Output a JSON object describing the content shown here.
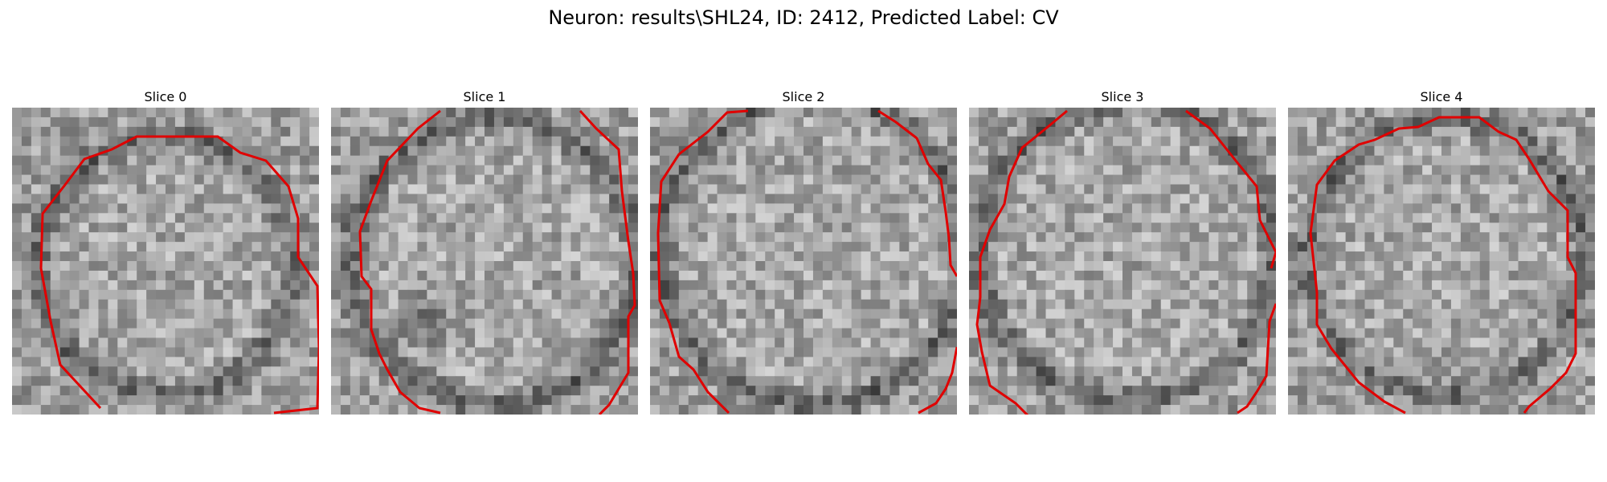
{
  "figure": {
    "title": "Neuron: results\\SHL24, ID: 2412, Predicted Label: CV",
    "boundary_color": "#e00000"
  },
  "slices": [
    {
      "label": "Slice 0"
    },
    {
      "label": "Slice 1"
    },
    {
      "label": "Slice 2"
    },
    {
      "label": "Slice 3"
    },
    {
      "label": "Slice 4"
    }
  ]
}
